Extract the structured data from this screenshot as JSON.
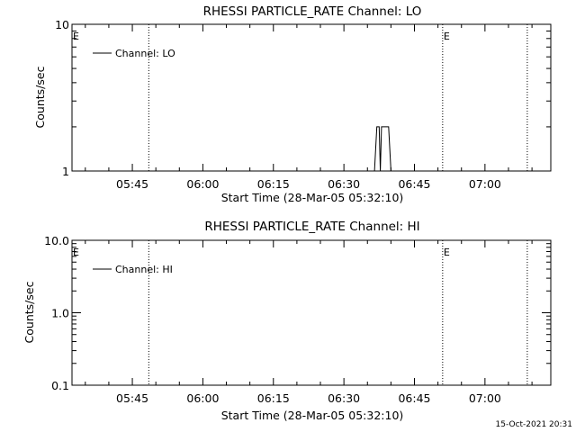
{
  "footer": {
    "timestamp": "15-Oct-2021 20:31"
  },
  "chart_data": [
    {
      "type": "line",
      "title": "RHESSI PARTICLE_RATE Channel: LO",
      "xlabel": "Start Time (28-Mar-05 05:32:10)",
      "ylabel": "Counts/sec",
      "yscale": "log",
      "ylim": [
        1,
        10
      ],
      "yticks": [
        {
          "value": 1,
          "label": "1"
        },
        {
          "value": 10,
          "label": "10"
        }
      ],
      "xlim": [
        "05:32:10",
        "07:14:00"
      ],
      "xticks": [
        "05:45",
        "06:00",
        "06:15",
        "06:30",
        "06:45",
        "07:00"
      ],
      "legend": {
        "position": "top-left",
        "entries": [
          "Channel: LO"
        ]
      },
      "markers": [
        {
          "time": "05:32:10",
          "label": "E",
          "line": false
        },
        {
          "time": "05:48:30",
          "label": "",
          "line": true
        },
        {
          "time": "06:51:00",
          "label": "E",
          "line": true
        },
        {
          "time": "07:09:00",
          "label": "",
          "line": true
        }
      ],
      "series": [
        {
          "name": "Channel: LO",
          "points": [
            {
              "x": "06:36:30",
              "y": 1
            },
            {
              "x": "06:37:00",
              "y": 2
            },
            {
              "x": "06:37:30",
              "y": 2
            },
            {
              "x": "06:37:45",
              "y": 1
            },
            {
              "x": "06:38:00",
              "y": 2
            },
            {
              "x": "06:39:30",
              "y": 2
            },
            {
              "x": "06:40:00",
              "y": 1
            }
          ]
        }
      ]
    },
    {
      "type": "line",
      "title": "RHESSI PARTICLE_RATE Channel: HI",
      "xlabel": "Start Time (28-Mar-05 05:32:10)",
      "ylabel": "Counts/sec",
      "yscale": "log",
      "ylim": [
        0.1,
        10
      ],
      "yticks": [
        {
          "value": 0.1,
          "label": "0.1"
        },
        {
          "value": 1,
          "label": "1.0"
        },
        {
          "value": 10,
          "label": "10.0"
        }
      ],
      "xlim": [
        "05:32:10",
        "07:14:00"
      ],
      "xticks": [
        "05:45",
        "06:00",
        "06:15",
        "06:30",
        "06:45",
        "07:00"
      ],
      "legend": {
        "position": "top-left",
        "entries": [
          "Channel: HI"
        ]
      },
      "markers": [
        {
          "time": "05:32:10",
          "label": "E",
          "line": false
        },
        {
          "time": "05:48:30",
          "label": "",
          "line": true
        },
        {
          "time": "06:51:00",
          "label": "E",
          "line": true
        },
        {
          "time": "07:09:00",
          "label": "",
          "line": true
        }
      ],
      "series": [
        {
          "name": "Channel: HI",
          "points": []
        }
      ]
    }
  ]
}
